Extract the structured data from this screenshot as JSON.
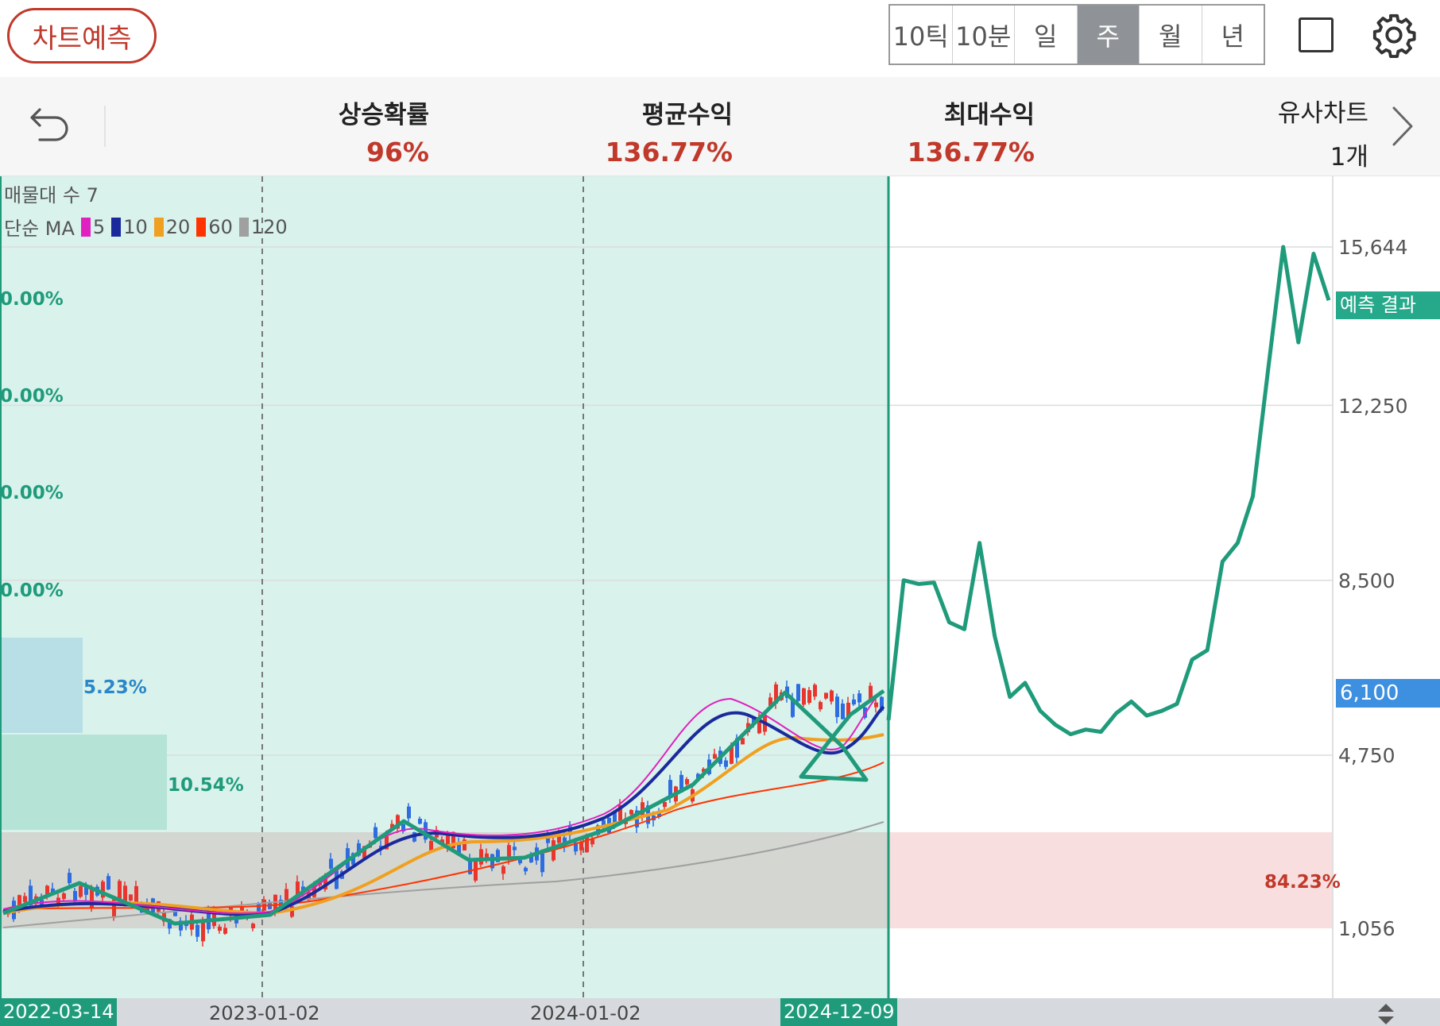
{
  "toolbar": {
    "predict_label": "차트예측",
    "periods": [
      "10틱",
      "10분",
      "일",
      "주",
      "월",
      "년"
    ],
    "active_period": "주",
    "icons": [
      "square-icon",
      "gear-icon"
    ]
  },
  "stats": {
    "rise_prob": {
      "label": "상승확률",
      "value": "96%"
    },
    "avg_return": {
      "label": "평균수익",
      "value": "136.77%"
    },
    "max_return": {
      "label": "최대수익",
      "value": "136.77%"
    },
    "similar": {
      "label": "유사차트",
      "value": "1개"
    },
    "icons": [
      "undo-icon",
      "chevron-right-icon"
    ]
  },
  "legend": {
    "volume_profile": "매물대 수 7",
    "ma_title": "단순 MA",
    "ma_items": [
      {
        "period": "5",
        "color": "#e020c0"
      },
      {
        "period": "10",
        "color": "#1a2a9c"
      },
      {
        "period": "20",
        "color": "#f0a020"
      },
      {
        "period": "60",
        "color": "#ff3300"
      },
      {
        "period": "120",
        "color": "#a0a0a0"
      }
    ]
  },
  "volume_profile": {
    "labels": [
      "0.00%",
      "0.00%",
      "0.00%",
      "0.00%",
      "5.23%",
      "10.54%",
      "84.23%"
    ]
  },
  "chart_data": {
    "type": "line",
    "x_start": "2022-03-14",
    "x_split": "2024-12-09",
    "x_ticks": [
      "2022-03-14",
      "2023-01-02",
      "2024-01-02",
      "2024-12-09"
    ],
    "y_ticks": [
      1056,
      4750,
      8500,
      12250,
      15644
    ],
    "current_price": "6,100",
    "current_price_value": 6100,
    "prediction_label": "예측 결과",
    "colors": {
      "prediction": "#1f9b7b",
      "history_bg": "#d9f2ec",
      "up": "#e8362f",
      "down": "#2d6de0"
    },
    "history_pattern": [
      1900,
      2200,
      1700,
      1850,
      3300,
      2500,
      2450,
      2800,
      3700,
      5400,
      4550,
      4100,
      3700,
      4700,
      5500
    ],
    "prediction": [
      5500,
      8500,
      8420,
      8450,
      7600,
      7450,
      9300,
      7300,
      6000,
      6300,
      5700,
      5400,
      5200,
      5300,
      5250,
      5650,
      5900,
      5600,
      5700,
      5850,
      6800,
      7000,
      8900,
      9300,
      10300,
      13000,
      15644,
      13600,
      15500,
      14500
    ]
  },
  "yaxis_labels": [
    "15,644",
    "12,250",
    "8,500",
    "4,750",
    "1,056"
  ],
  "xaxis_labels": {
    "start": "2022-03-14",
    "t1": "2023-01-02",
    "t2": "2024-01-02",
    "end": "2024-12-09"
  }
}
